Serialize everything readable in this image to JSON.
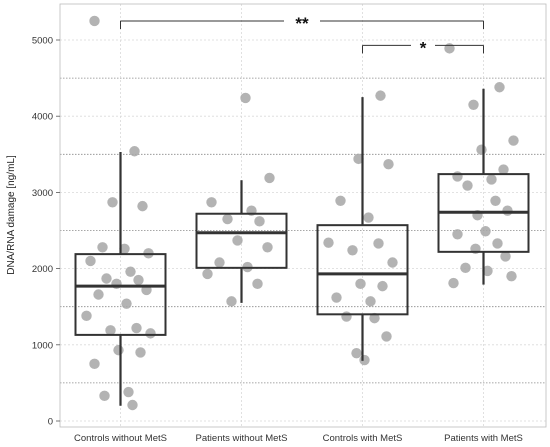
{
  "chart_data": {
    "type": "box",
    "ylabel": "DNA/RNA damage [ng/mL]",
    "ylim": [
      0,
      5400
    ],
    "yticks": [
      0,
      1000,
      2000,
      3000,
      4000,
      5000
    ],
    "minor_grid_y": [
      500,
      1500,
      2500,
      3500,
      4500
    ],
    "grid": true,
    "categories": [
      "Controls without MetS",
      "Patients without MetS",
      "Controls with MetS",
      "Patients with MetS"
    ],
    "boxes": [
      {
        "whisker_low": 200,
        "q1": 1130,
        "median": 1770,
        "q3": 2190,
        "whisker_high": 3530
      },
      {
        "whisker_low": 1550,
        "q1": 2010,
        "median": 2470,
        "q3": 2720,
        "whisker_high": 3160
      },
      {
        "whisker_low": 790,
        "q1": 1400,
        "median": 1930,
        "q3": 2570,
        "whisker_high": 4250
      },
      {
        "whisker_low": 1790,
        "q1": 2220,
        "median": 2740,
        "q3": 3240,
        "whisker_high": 4360
      }
    ],
    "points": [
      [
        5250,
        3540,
        2870,
        2820,
        2280,
        2260,
        2200,
        2100,
        1960,
        1870,
        1850,
        1800,
        1720,
        1660,
        1540,
        1380,
        1220,
        1190,
        1150,
        930,
        900,
        750,
        380,
        330,
        210
      ],
      [
        4240,
        3190,
        2870,
        2760,
        2650,
        2620,
        2370,
        2280,
        2080,
        2020,
        1930,
        1800,
        1570
      ],
      [
        4270,
        3440,
        3370,
        2890,
        2670,
        2340,
        2330,
        2240,
        2080,
        1800,
        1770,
        1620,
        1570,
        1370,
        1350,
        1110,
        890,
        800
      ],
      [
        4890,
        4380,
        4150,
        3680,
        3560,
        3300,
        3210,
        3170,
        3090,
        2890,
        2760,
        2700,
        2490,
        2450,
        2330,
        2260,
        2160,
        2010,
        1970,
        1900,
        1810
      ]
    ],
    "significance": [
      {
        "groups": [
          0,
          3
        ],
        "label": "**",
        "y": 5250
      },
      {
        "groups": [
          2,
          3
        ],
        "label": "*",
        "y": 4930
      }
    ]
  }
}
